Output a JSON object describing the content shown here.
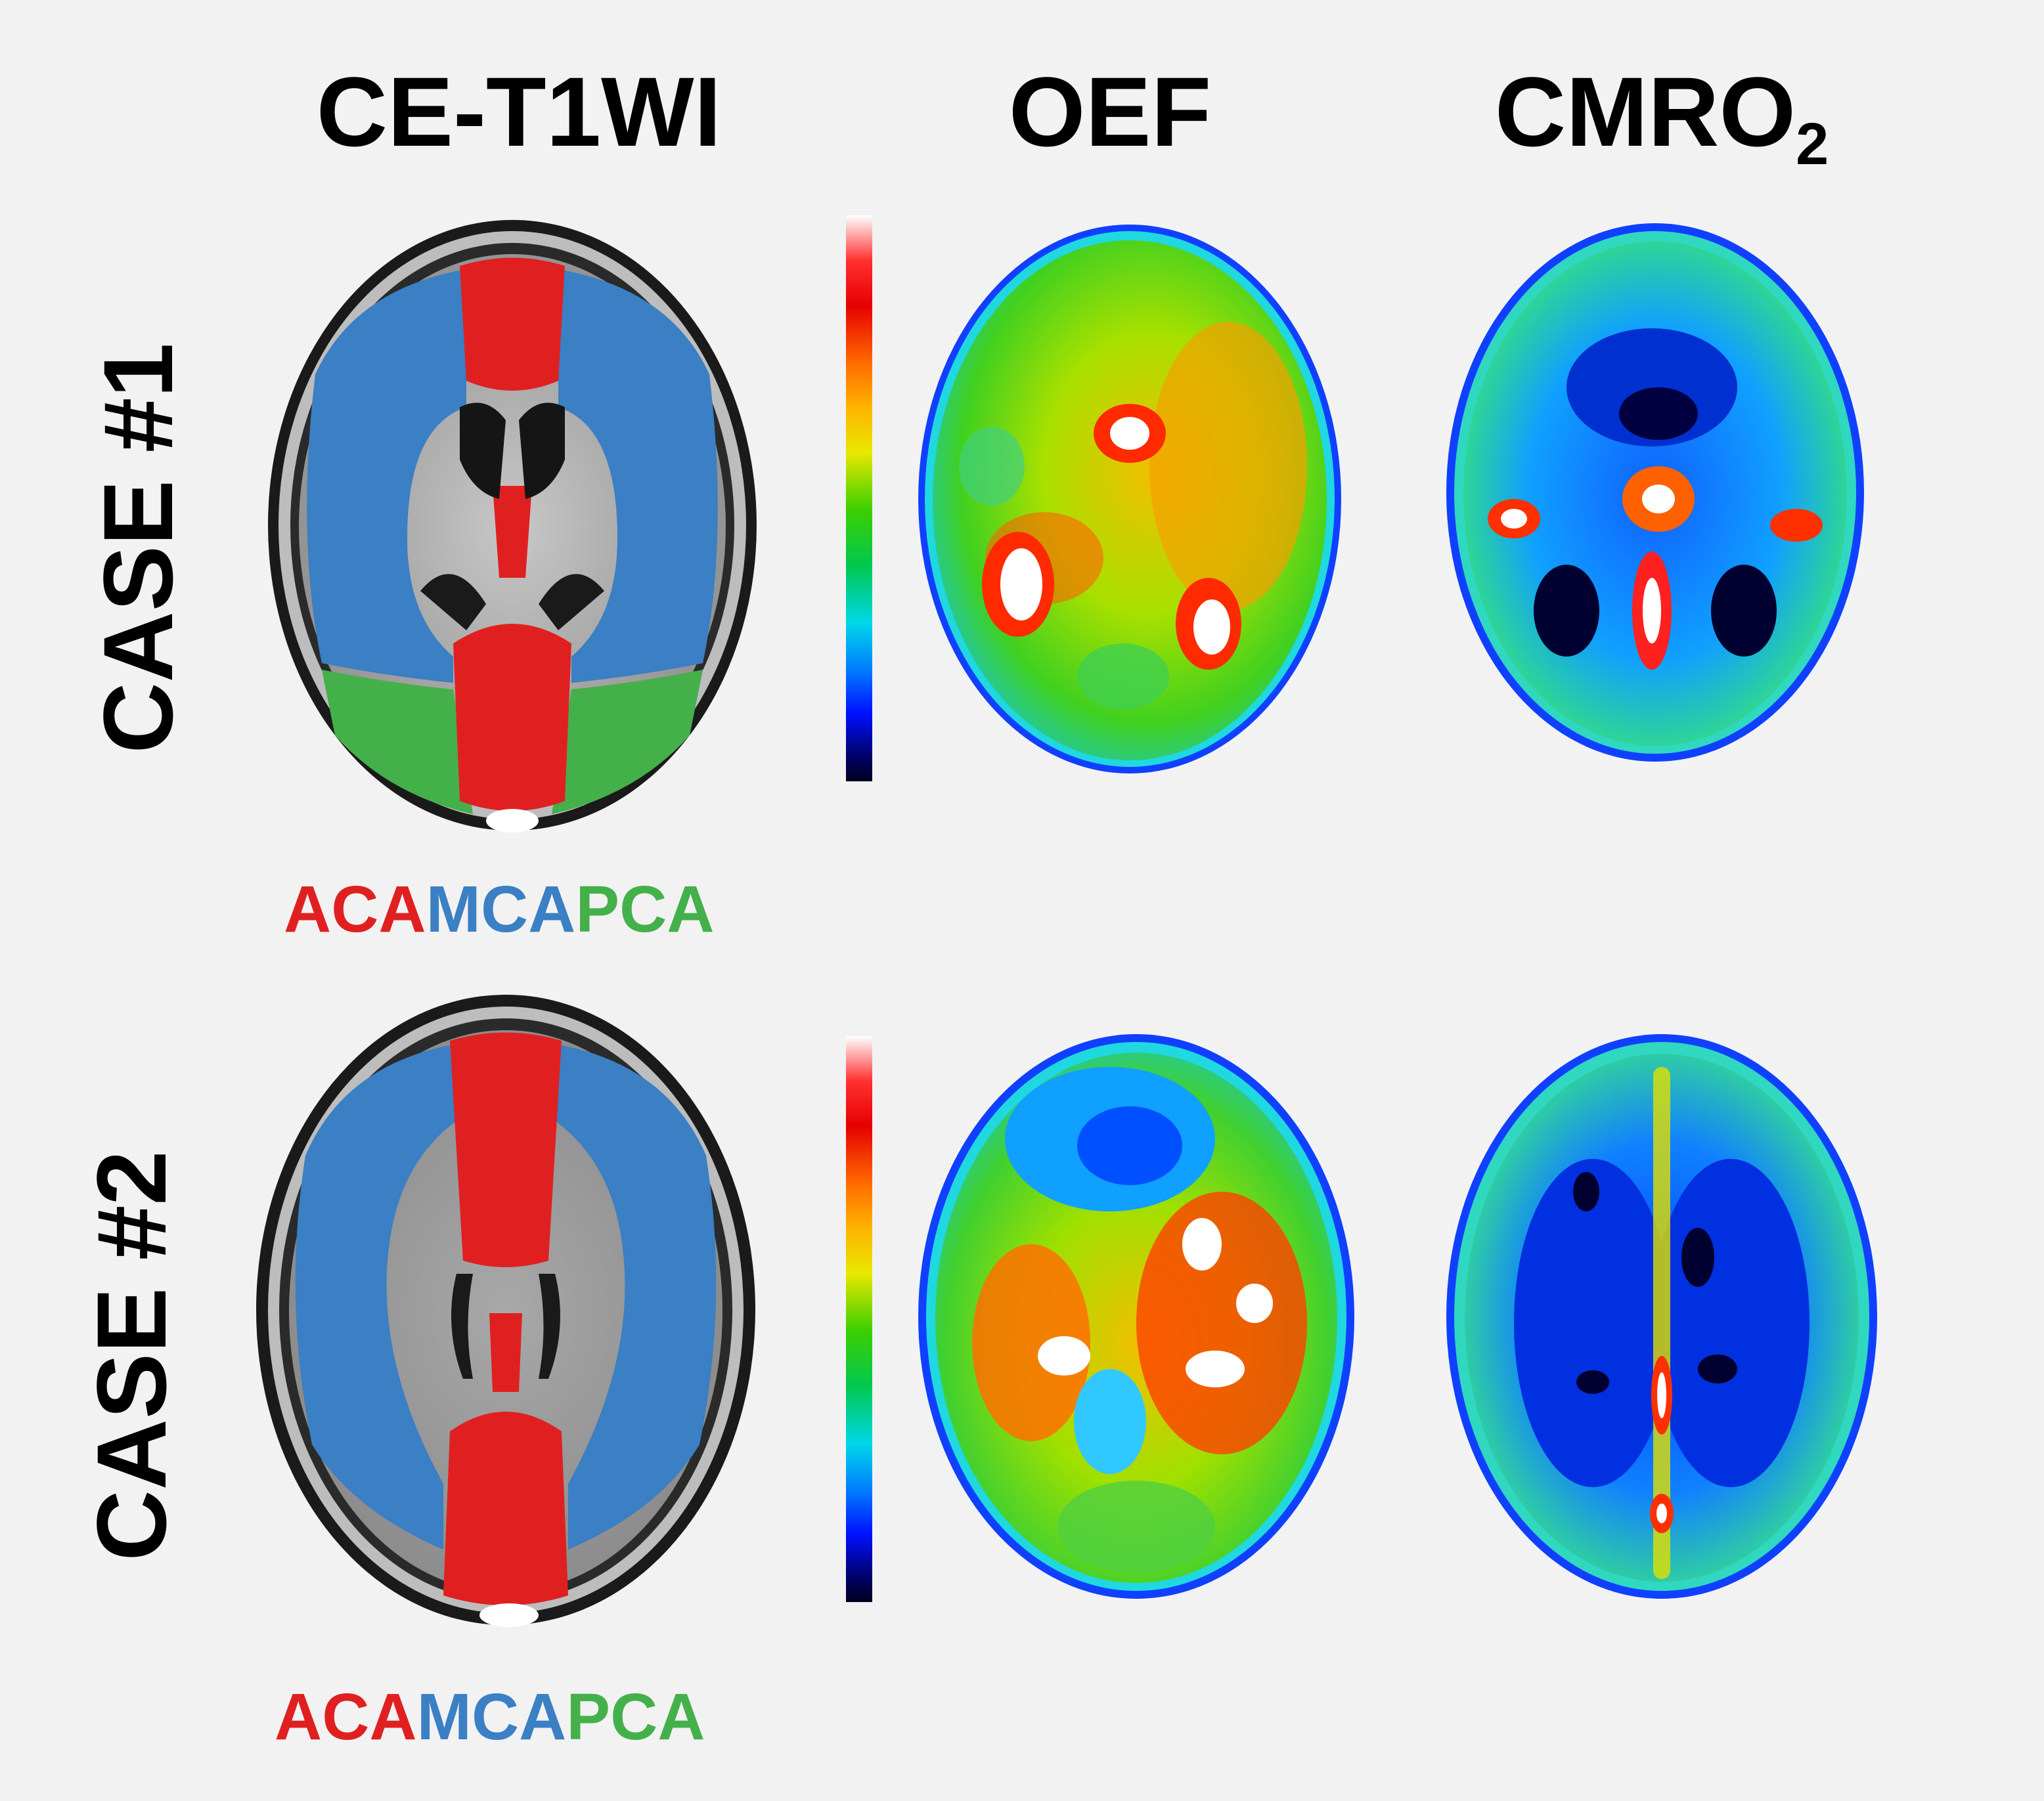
{
  "columns": {
    "ce_t1wi": "CE-T1WI",
    "oef": "OEF",
    "cmro2_main": "CMRO",
    "cmro2_sub": "2"
  },
  "rows": [
    {
      "label": "CASE #1",
      "legend": [
        {
          "text": "ACA",
          "color": "#e02020"
        },
        {
          "text": "MCA",
          "color": "#3b7fc4"
        },
        {
          "text": "PCA",
          "color": "#44b04a"
        }
      ]
    },
    {
      "label": "CASE #2",
      "legend": [
        {
          "text": "ACA",
          "color": "#e02020"
        },
        {
          "text": "MCA",
          "color": "#3b7fc4"
        },
        {
          "text": "PCA",
          "color": "#44b04a"
        }
      ]
    }
  ],
  "colors": {
    "aca": "#e02020",
    "mca": "#3b7fc4",
    "pca": "#44b04a",
    "background": "#f2f2f2"
  }
}
